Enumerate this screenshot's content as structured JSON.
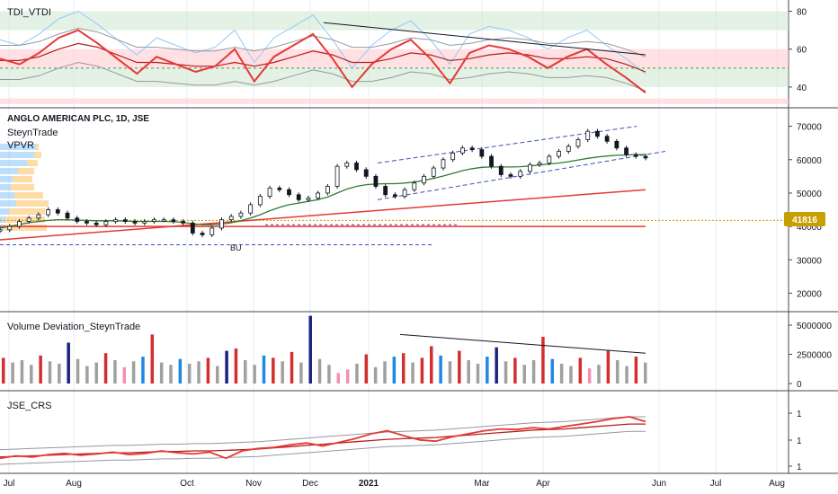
{
  "colors": {
    "grid": "#e6ecf5",
    "separator": "#434651",
    "candle": "#131722",
    "ma_green": "#2e7d32",
    "ma_red": "#e53935",
    "channel": "#3f51b5",
    "price_line_bg": "#c89f00",
    "tdi_red": "#e53935",
    "tdi_green_band": "#c8e6c9",
    "tdi_red_band": "#ffcdd2",
    "band_line": "#9598a1",
    "rsi_blue": "#90caf9",
    "vol_gray": "#a0a0a0",
    "vol_red": "#d32f2f",
    "vol_blue": "#1e88e5",
    "vol_navy": "#1a237e",
    "vol_pink": "#f48fb1",
    "vpvr_blue": "#90caf9",
    "vpvr_orange": "#ffcc80"
  },
  "x_axis": {
    "labels": [
      {
        "text": "Jul",
        "bold": false
      },
      {
        "text": "Aug",
        "bold": false
      },
      {
        "text": "Oct",
        "bold": false
      },
      {
        "text": "Nov",
        "bold": false
      },
      {
        "text": "Dec",
        "bold": false
      },
      {
        "text": "2021",
        "bold": true
      },
      {
        "text": "Mar",
        "bold": false
      },
      {
        "text": "Apr",
        "bold": false
      },
      {
        "text": "Jun",
        "bold": false
      },
      {
        "text": "Jul",
        "bold": false
      },
      {
        "text": "Aug",
        "bold": false
      }
    ]
  },
  "panes": {
    "tdi": {
      "title": "TDI_VTDI",
      "ticks": [
        "80",
        "60",
        "40"
      ]
    },
    "price": {
      "title": "ANGLO AMERICAN PLC, 1D, JSE",
      "indicator1": "SteynTrade",
      "indicator2": "VPVR",
      "ticks": [
        "70000",
        "60000",
        "50000",
        "40000",
        "30000",
        "20000"
      ],
      "price_label": "41816",
      "annotation": "BU"
    },
    "volume": {
      "title": "Volume Deviation_SteynTrade",
      "ticks": [
        "5000000",
        "2500000",
        "0"
      ]
    },
    "crs": {
      "title": "JSE_CRS",
      "ticks": [
        "1",
        "1",
        "1"
      ]
    }
  },
  "chart_data": [
    {
      "type": "line",
      "name": "TDI_VTDI",
      "ylim": [
        30,
        85
      ],
      "levels": [
        80,
        60,
        40
      ],
      "series": [
        {
          "values": [
            55,
            52,
            58,
            66,
            70,
            63,
            55,
            47,
            56,
            52,
            48,
            51,
            60,
            43,
            56,
            62,
            68,
            55,
            40,
            52,
            60,
            65,
            55,
            42,
            58,
            62,
            60,
            56,
            50,
            56,
            60,
            52,
            45,
            37
          ]
        },
        {
          "values": [
            54,
            54,
            56,
            60,
            63,
            61,
            57,
            53,
            53,
            52,
            51,
            51,
            53,
            51,
            53,
            56,
            59,
            57,
            53,
            53,
            55,
            58,
            57,
            54,
            55,
            57,
            58,
            57,
            55,
            55,
            56,
            55,
            52,
            48
          ]
        }
      ]
    },
    {
      "type": "candlestick",
      "name": "ANGLO AMERICAN PLC, 1D, JSE",
      "ylim": [
        15000,
        75000
      ],
      "closes": [
        39000,
        40000,
        41500,
        42500,
        43500,
        45000,
        44000,
        42500,
        41500,
        41000,
        40500,
        41500,
        42000,
        41500,
        41000,
        41500,
        42000,
        42000,
        41500,
        41000,
        38000,
        37500,
        39500,
        42000,
        43000,
        44000,
        46500,
        49000,
        51500,
        51000,
        49500,
        48000,
        48500,
        50000,
        52000,
        58000,
        59000,
        57000,
        55000,
        52000,
        49500,
        49000,
        51000,
        53000,
        55000,
        57500,
        60000,
        62000,
        63500,
        63000,
        61000,
        58000,
        55500,
        55000,
        56500,
        58500,
        59000,
        61000,
        62500,
        64000,
        66000,
        68500,
        67000,
        65500,
        63500,
        61500,
        61000,
        60500
      ],
      "ma_green": [
        39500,
        40000,
        40600,
        41100,
        41500,
        41800,
        42000,
        42000,
        41900,
        41800,
        41700,
        41700,
        41700,
        41600,
        41500,
        41500,
        41500,
        41500,
        41400,
        41200,
        40800,
        40500,
        40500,
        40700,
        41100,
        41700,
        42500,
        43500,
        44700,
        45700,
        46500,
        47000,
        47500,
        48000,
        48800,
        50000,
        51200,
        52000,
        52500,
        52700,
        52800,
        52800,
        53000,
        53300,
        53800,
        54400,
        55100,
        55900,
        56700,
        57300,
        57700,
        57800,
        57800,
        57800,
        57900,
        58100,
        58400,
        58700,
        59000,
        59400,
        59900,
        60400,
        60800,
        61100,
        61300,
        61400,
        61500,
        61500
      ],
      "ma_red_start": 36000,
      "ma_red_end": 51000,
      "horizontal_red": 40000,
      "dashed_level": 34500,
      "price_line": 41816,
      "channel": {
        "upper": [
          59000,
          70000
        ],
        "lower": [
          48000,
          61000
        ]
      }
    },
    {
      "type": "bar",
      "name": "Volume Deviation_SteynTrade",
      "ylim": [
        0,
        6000000
      ],
      "values": [
        2200000,
        1800000,
        2000000,
        1600000,
        2400000,
        1900000,
        1700000,
        3500000,
        2100000,
        1500000,
        1800000,
        2600000,
        2000000,
        1400000,
        1900000,
        2300000,
        4200000,
        1800000,
        1600000,
        2100000,
        1700000,
        1900000,
        2200000,
        1500000,
        2800000,
        3000000,
        2000000,
        1600000,
        2400000,
        2200000,
        1900000,
        2700000,
        1800000,
        5800000,
        2100000,
        1600000,
        900000,
        1200000,
        1700000,
        2500000,
        1400000,
        1900000,
        2300000,
        2600000,
        1800000,
        2200000,
        3200000,
        2400000,
        1900000,
        2800000,
        2000000,
        1700000,
        2300000,
        3100000,
        1900000,
        2200000,
        1600000,
        2000000,
        4000000,
        2100000,
        1700000,
        1500000,
        2200000,
        1300000,
        1600000,
        2800000,
        2000000,
        1500000,
        2300000,
        1800000
      ],
      "colors_key": [
        "vol_red",
        "vol_gray",
        "vol_gray",
        "vol_gray",
        "vol_red",
        "vol_gray",
        "vol_gray",
        "vol_navy",
        "vol_gray",
        "vol_gray",
        "vol_gray",
        "vol_red",
        "vol_gray",
        "vol_pink",
        "vol_gray",
        "vol_blue",
        "vol_red",
        "vol_gray",
        "vol_gray",
        "vol_blue",
        "vol_gray",
        "vol_gray",
        "vol_red",
        "vol_gray",
        "vol_navy",
        "vol_red",
        "vol_gray",
        "vol_gray",
        "vol_blue",
        "vol_red",
        "vol_gray",
        "vol_red",
        "vol_gray",
        "vol_navy",
        "vol_gray",
        "vol_gray",
        "vol_pink",
        "vol_pink",
        "vol_gray",
        "vol_red",
        "vol_gray",
        "vol_gray",
        "vol_blue",
        "vol_red",
        "vol_gray",
        "vol_red",
        "vol_red",
        "vol_blue",
        "vol_gray",
        "vol_red",
        "vol_gray",
        "vol_gray",
        "vol_blue",
        "vol_navy",
        "vol_gray",
        "vol_red",
        "vol_gray",
        "vol_gray",
        "vol_red",
        "vol_blue",
        "vol_gray",
        "vol_gray",
        "vol_red",
        "vol_pink",
        "vol_gray",
        "vol_red",
        "vol_gray",
        "vol_gray",
        "vol_red",
        "vol_gray"
      ]
    },
    {
      "type": "line",
      "name": "JSE_CRS",
      "series": [
        {
          "values": [
            0.1,
            0.14,
            0.12,
            0.16,
            0.18,
            0.15,
            0.17,
            0.2,
            0.16,
            0.18,
            0.22,
            0.19,
            0.17,
            0.2,
            0.1,
            0.22,
            0.26,
            0.28,
            0.32,
            0.35,
            0.3,
            0.36,
            0.42,
            0.5,
            0.55,
            0.47,
            0.4,
            0.38,
            0.45,
            0.5,
            0.55,
            0.58,
            0.57,
            0.6,
            0.58,
            0.62,
            0.66,
            0.7,
            0.75,
            0.78,
            0.7
          ]
        },
        {
          "values": [
            0.12,
            0.13,
            0.14,
            0.15,
            0.16,
            0.17,
            0.18,
            0.19,
            0.19,
            0.2,
            0.21,
            0.21,
            0.22,
            0.22,
            0.23,
            0.24,
            0.25,
            0.27,
            0.29,
            0.31,
            0.33,
            0.35,
            0.37,
            0.39,
            0.41,
            0.42,
            0.43,
            0.44,
            0.46,
            0.48,
            0.5,
            0.52,
            0.54,
            0.56,
            0.57,
            0.58,
            0.6,
            0.62,
            0.64,
            0.66,
            0.66
          ]
        }
      ]
    }
  ]
}
